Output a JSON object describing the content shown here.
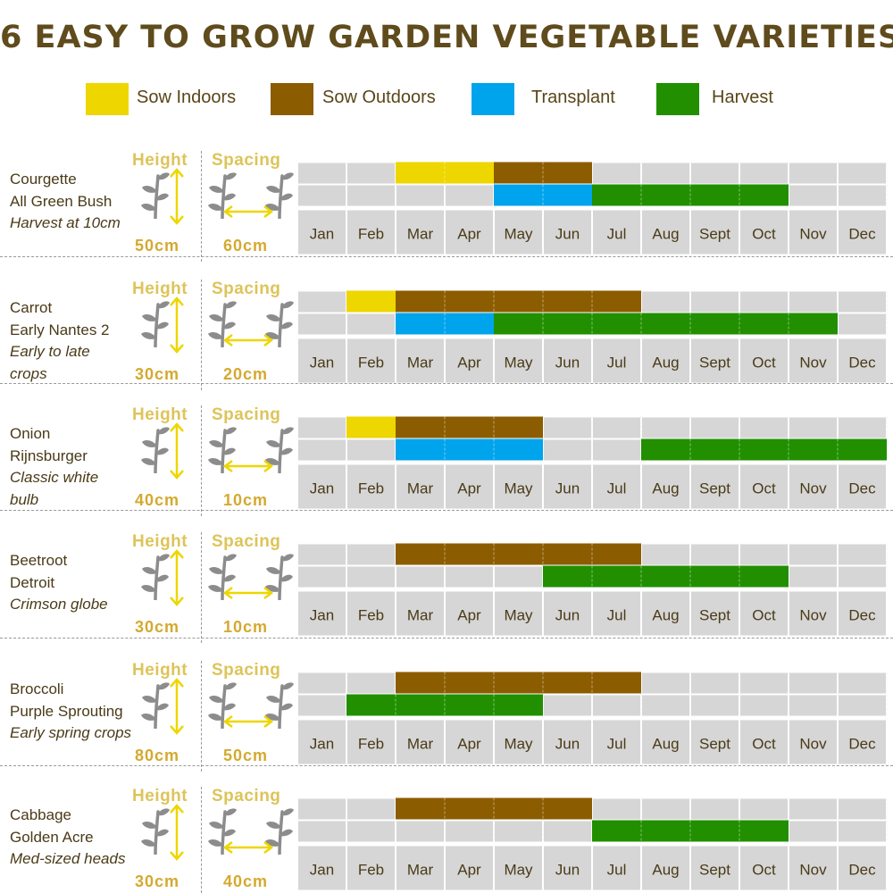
{
  "title": "6 EASY TO GROW GARDEN VEGETABLE VARIETIES",
  "colors": {
    "sow_indoors": "#eed600",
    "sow_outdoors": "#8c5c00",
    "transplant": "#00a4ec",
    "harvest": "#218f00",
    "cell": "#d6d6d6",
    "header_text": "#ddc45a",
    "value_text": "#d4a92f"
  },
  "legend": [
    {
      "key": "sow_indoors",
      "label": "Sow Indoors"
    },
    {
      "key": "sow_outdoors",
      "label": "Sow Outdoors"
    },
    {
      "key": "transplant",
      "label": "Transplant"
    },
    {
      "key": "harvest",
      "label": "Harvest"
    }
  ],
  "labels": {
    "height": "Height",
    "spacing": "Spacing"
  },
  "icons": {
    "plant": "plant-icon",
    "height_arrow": "vertical-arrow-icon",
    "spacing_arrow": "horizontal-arrow-icon"
  },
  "chart_data": {
    "type": "table",
    "title": "6 EASY TO GROW GARDEN VEGETABLE VARIETIES",
    "months": [
      "Jan",
      "Feb",
      "Mar",
      "Apr",
      "May",
      "Jun",
      "Jul",
      "Aug",
      "Sept",
      "Oct",
      "Nov",
      "Dec"
    ],
    "crops": [
      {
        "name": "Courgette",
        "variety": "All Green Bush",
        "note": [
          "Harvest at 10cm"
        ],
        "height": "50cm",
        "spacing": "60cm",
        "row1": [
          {
            "type": "sow_indoors",
            "start": 3,
            "end": 4
          },
          {
            "type": "sow_outdoors",
            "start": 5,
            "end": 6
          }
        ],
        "row2": [
          {
            "type": "transplant",
            "start": 5,
            "end": 6
          },
          {
            "type": "harvest",
            "start": 7,
            "end": 10
          }
        ]
      },
      {
        "name": "Carrot",
        "variety": "Early Nantes 2",
        "note": [
          "Early to late",
          "crops"
        ],
        "height": "30cm",
        "spacing": "20cm",
        "row1": [
          {
            "type": "sow_indoors",
            "start": 2,
            "end": 2
          },
          {
            "type": "sow_outdoors",
            "start": 3,
            "end": 7
          }
        ],
        "row2": [
          {
            "type": "transplant",
            "start": 3,
            "end": 4
          },
          {
            "type": "harvest",
            "start": 5,
            "end": 11
          }
        ]
      },
      {
        "name": "Onion",
        "variety": "Rijnsburger",
        "note": [
          "Classic white",
          "bulb"
        ],
        "height": "40cm",
        "spacing": "10cm",
        "row1": [
          {
            "type": "sow_indoors",
            "start": 2,
            "end": 2
          },
          {
            "type": "sow_outdoors",
            "start": 3,
            "end": 5
          }
        ],
        "row2": [
          {
            "type": "transplant",
            "start": 3,
            "end": 5
          },
          {
            "type": "harvest",
            "start": 8,
            "end": 12
          }
        ]
      },
      {
        "name": "Beetroot",
        "variety": "Detroit",
        "note": [
          "Crimson globe"
        ],
        "height": "30cm",
        "spacing": "10cm",
        "row1": [
          {
            "type": "sow_outdoors",
            "start": 3,
            "end": 7
          }
        ],
        "row2": [
          {
            "type": "harvest",
            "start": 6,
            "end": 10
          }
        ]
      },
      {
        "name": "Broccoli",
        "variety": "Purple Sprouting",
        "note": [
          "Early spring crops"
        ],
        "height": "80cm",
        "spacing": "50cm",
        "row1": [
          {
            "type": "sow_outdoors",
            "start": 3,
            "end": 7
          }
        ],
        "row2": [
          {
            "type": "harvest",
            "start": 2,
            "end": 5
          }
        ]
      },
      {
        "name": "Cabbage",
        "variety": "Golden Acre",
        "note": [
          "Med-sized heads"
        ],
        "height": "30cm",
        "spacing": "40cm",
        "row1": [
          {
            "type": "sow_outdoors",
            "start": 3,
            "end": 6
          }
        ],
        "row2": [
          {
            "type": "harvest",
            "start": 7,
            "end": 10
          }
        ]
      }
    ]
  }
}
